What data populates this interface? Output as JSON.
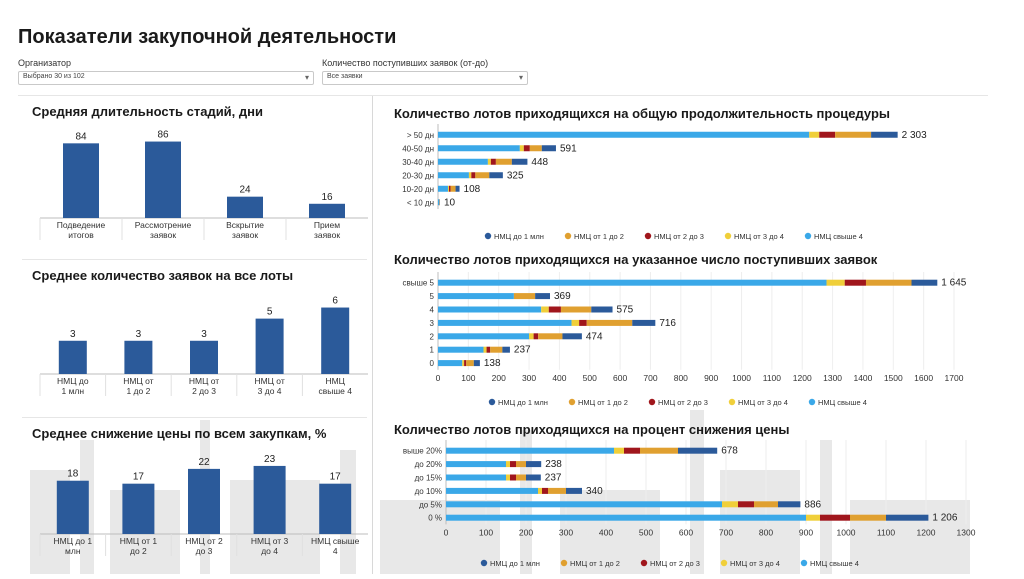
{
  "page": {
    "title": "Показатели закупочной деятельности"
  },
  "filters": [
    {
      "label": "Организатор",
      "value": "Выбрано 30 из 102"
    },
    {
      "label": "Количество поступивших заявок (от-до)",
      "value": "Все заявки"
    }
  ],
  "colors": {
    "bar": "#2b5a9a",
    "nmc1": "#2b5a9a",
    "nmc2": "#e0a030",
    "nmc3": "#a0161c",
    "nmc4": "#f0cf3a",
    "nmc5": "#3aa8e8"
  },
  "legend_labels": [
    "НМЦ до 1 млн",
    "НМЦ от 1 до 2",
    "НМЦ от 2 до 3",
    "НМЦ от 3 до 4",
    "НМЦ свыше 4"
  ],
  "chart_data": [
    {
      "id": "stages",
      "type": "bar",
      "title": "Средняя длительность стадий, дни",
      "categories": [
        "Подведение итогов",
        "Рассмотрение заявок",
        "Вскрытие заявок",
        "Прием заявок"
      ],
      "values": [
        84,
        86,
        24,
        16
      ],
      "ylim": [
        0,
        90
      ]
    },
    {
      "id": "avg_bids",
      "type": "bar",
      "title": "Среднее количество заявок на все лоты",
      "categories": [
        "НМЦ до 1 млн",
        "НМЦ от 1 до 2",
        "НМЦ от 2 до 3",
        "НМЦ от 3 до 4",
        "НМЦ свыше 4"
      ],
      "values": [
        3,
        3,
        3,
        5,
        6
      ],
      "ylim": [
        0,
        6.5
      ]
    },
    {
      "id": "price_drop",
      "type": "bar",
      "title": "Среднее снижение цены по всем закупкам, %",
      "categories": [
        "НМЦ до 1 млн",
        "НМЦ от 1 до 2",
        "НМЦ от 2 до 3",
        "НМЦ от 3 до 4",
        "НМЦ свыше 4"
      ],
      "values": [
        18,
        17,
        22,
        23,
        17
      ],
      "ylim": [
        0,
        25
      ]
    },
    {
      "id": "duration",
      "type": "bar",
      "orientation": "horizontal",
      "stacked": true,
      "title": "Количество лотов приходящихся на общую продолжительность процедуры",
      "categories": [
        "> 50 дн",
        "40-50 дн",
        "30-40 дн",
        "20-30 дн",
        "10-20 дн",
        "< 10 дн"
      ],
      "totals": [
        "2 303",
        "591",
        "448",
        "325",
        "108",
        "10"
      ],
      "series": [
        {
          "name": "НМЦ свыше 4",
          "values": [
            1860,
            410,
            250,
            155,
            50,
            6
          ]
        },
        {
          "name": "НМЦ от 3 до 4",
          "values": [
            50,
            20,
            15,
            12,
            5,
            1
          ]
        },
        {
          "name": "НМЦ от 2 до 3",
          "values": [
            80,
            30,
            25,
            20,
            8,
            1
          ]
        },
        {
          "name": "НМЦ от 1 до 2",
          "values": [
            180,
            60,
            80,
            70,
            25,
            1
          ]
        },
        {
          "name": "НМЦ до 1 млн",
          "values": [
            133,
            71,
            78,
            68,
            20,
            1
          ]
        }
      ],
      "xlim": [
        0,
        2420
      ]
    },
    {
      "id": "bids",
      "type": "bar",
      "orientation": "horizontal",
      "stacked": true,
      "title": "Количество лотов приходящихся на указанное число поступивших заявок",
      "categories": [
        "свыше 5",
        "5",
        "4",
        "3",
        "2",
        "1",
        "0"
      ],
      "totals": [
        "1 645",
        "369",
        "575",
        "716",
        "474",
        "237",
        "138"
      ],
      "series": [
        {
          "name": "НМЦ свыше 4",
          "values": [
            1280,
            250,
            340,
            440,
            300,
            150,
            80
          ]
        },
        {
          "name": "НМЦ от 3 до 4",
          "values": [
            60,
            0,
            25,
            25,
            15,
            10,
            6
          ]
        },
        {
          "name": "НМЦ от 2 до 3",
          "values": [
            70,
            0,
            40,
            25,
            15,
            12,
            7
          ]
        },
        {
          "name": "НМЦ от 1 до 2",
          "values": [
            150,
            70,
            100,
            150,
            80,
            40,
            25
          ]
        },
        {
          "name": "НМЦ до 1 млн",
          "values": [
            85,
            49,
            70,
            76,
            64,
            25,
            20
          ]
        }
      ],
      "ticks": [
        0,
        100,
        200,
        300,
        400,
        500,
        600,
        700,
        800,
        900,
        1000,
        1100,
        1200,
        1300,
        1400,
        1500,
        1600,
        1700
      ],
      "xlim": [
        0,
        1700
      ]
    },
    {
      "id": "price_pct",
      "type": "bar",
      "orientation": "horizontal",
      "stacked": true,
      "title": "Количество лотов приходящихся на процент снижения цены",
      "categories": [
        "выше 20%",
        "до 20%",
        "до 15%",
        "до 10%",
        "до 5%",
        "0 %"
      ],
      "totals": [
        "678",
        "238",
        "237",
        "340",
        "886",
        "1 206"
      ],
      "series": [
        {
          "name": "НМЦ свыше 4",
          "values": [
            420,
            150,
            150,
            230,
            690,
            900
          ]
        },
        {
          "name": "НМЦ от 3 до 4",
          "values": [
            25,
            10,
            10,
            10,
            40,
            35
          ]
        },
        {
          "name": "НМЦ от 2 до 3",
          "values": [
            40,
            15,
            15,
            15,
            40,
            75
          ]
        },
        {
          "name": "НМЦ от 1 до 2",
          "values": [
            95,
            25,
            25,
            45,
            60,
            90
          ]
        },
        {
          "name": "НМЦ до 1 млн",
          "values": [
            98,
            38,
            37,
            40,
            56,
            106
          ]
        }
      ],
      "ticks": [
        0,
        100,
        200,
        300,
        400,
        500,
        600,
        700,
        800,
        900,
        1000,
        1100,
        1200,
        1300
      ],
      "xlim": [
        0,
        1300
      ]
    }
  ]
}
